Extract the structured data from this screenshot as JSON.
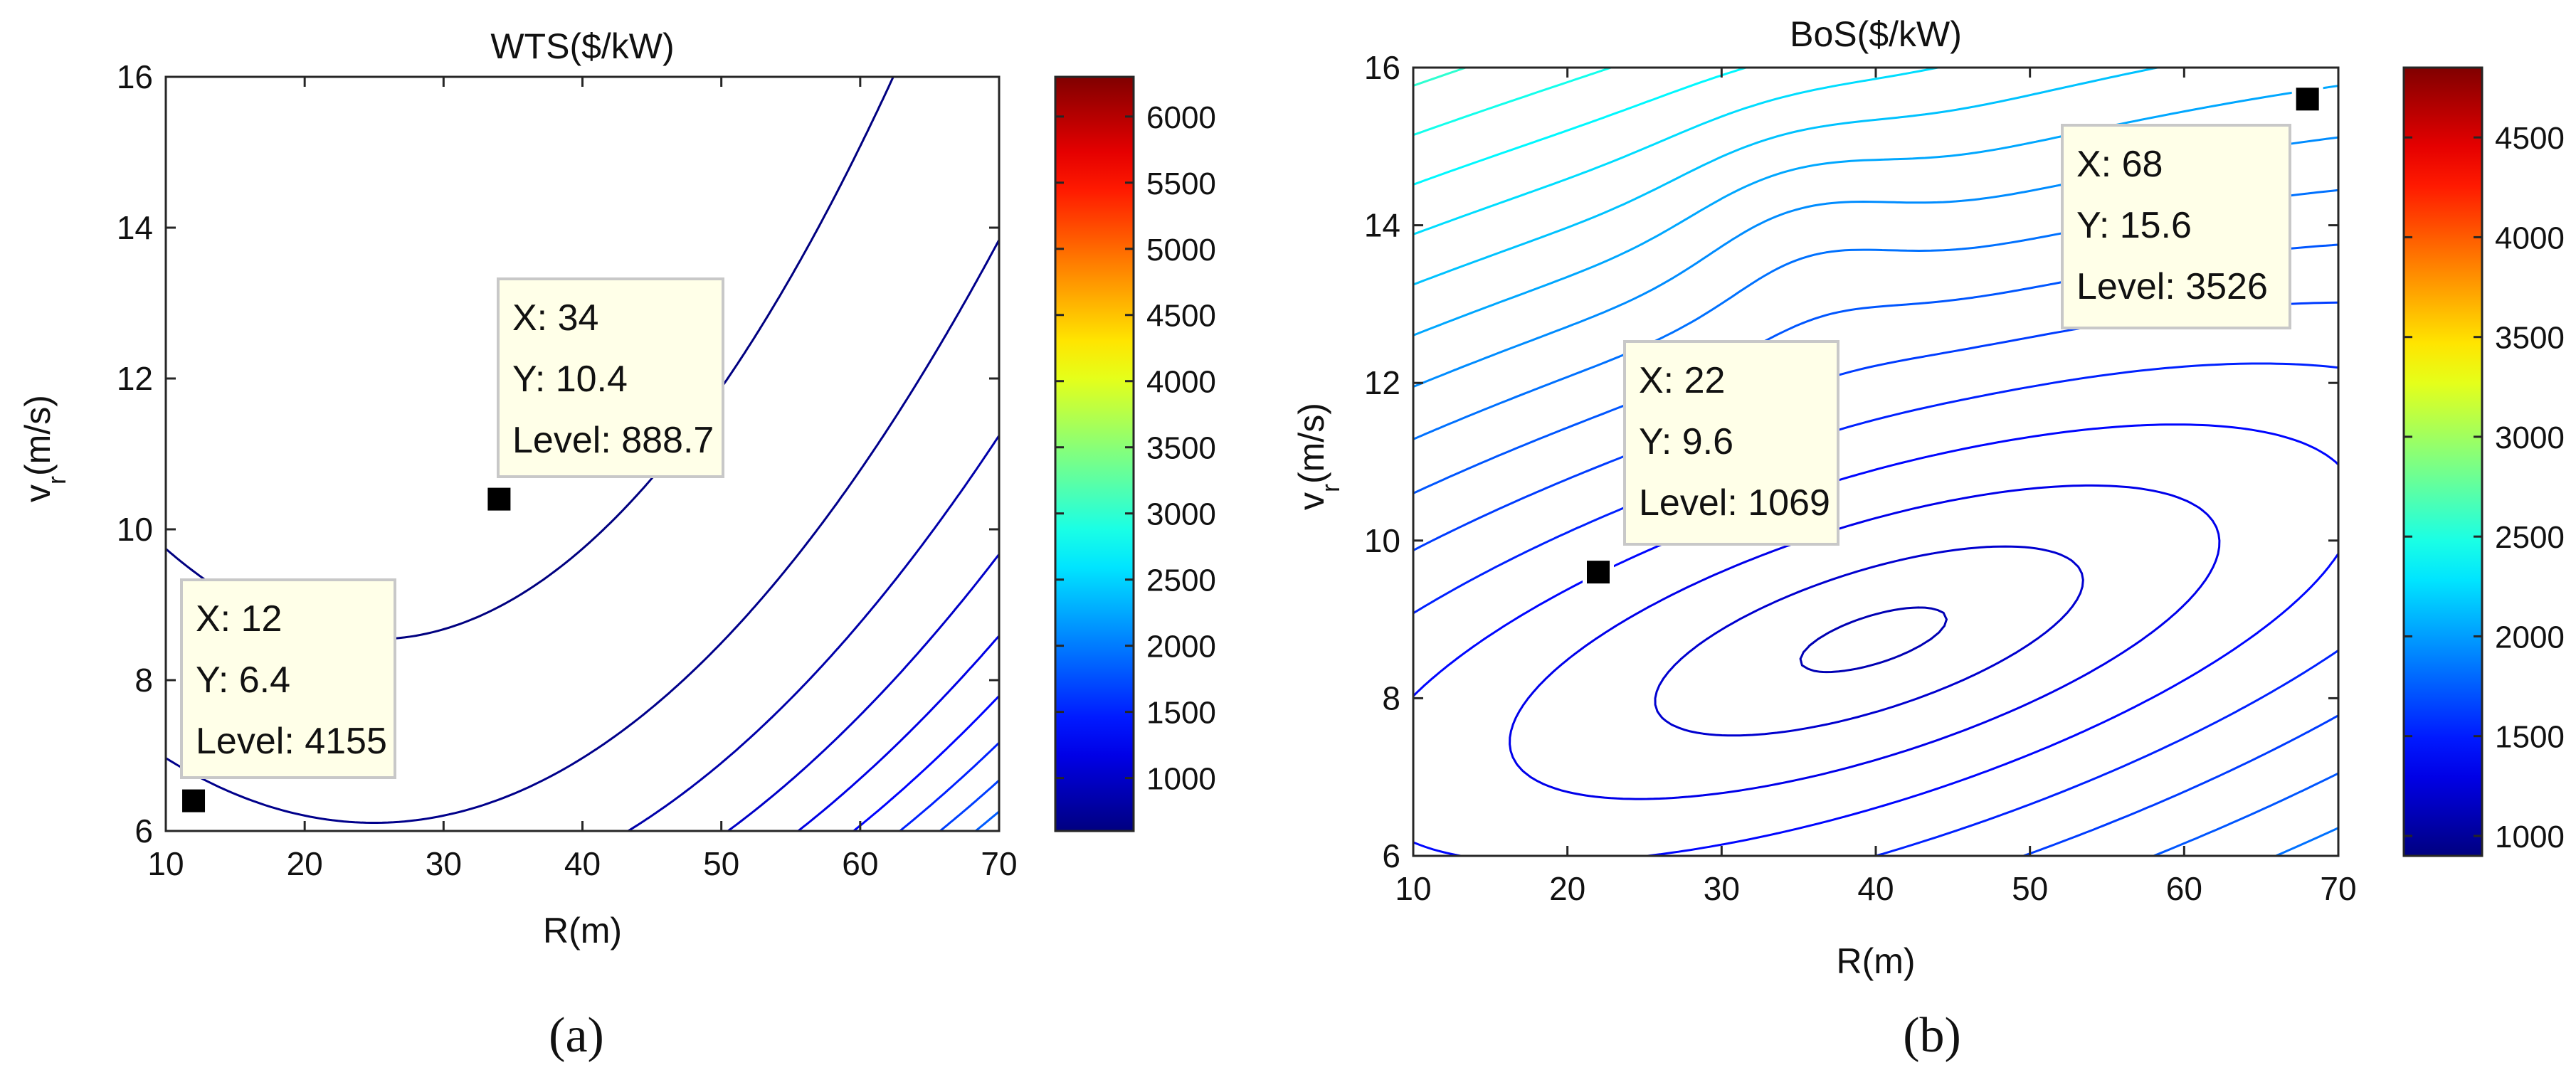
{
  "chart_data": [
    {
      "type": "contour",
      "panel_label": "(a)",
      "title": "WTS($/kW)",
      "xlabel": "R(m)",
      "ylabel_main": "v",
      "ylabel_sub": "r",
      "ylabel_unit": "(m/s)",
      "xlim": [
        10,
        70
      ],
      "ylim": [
        6,
        16
      ],
      "xticks": [
        "10",
        "20",
        "30",
        "40",
        "50",
        "60",
        "70"
      ],
      "yticks": [
        "6",
        "8",
        "10",
        "12",
        "14",
        "16"
      ],
      "colorbar": {
        "min": 600,
        "max": 6300,
        "ticks": [
          "1000",
          "1500",
          "2000",
          "2500",
          "3000",
          "3500",
          "4000",
          "4500",
          "5000",
          "5500",
          "6000"
        ]
      },
      "datatips": [
        {
          "x": 34,
          "y": 10.4,
          "level": 888.7,
          "x_text": "X: 34",
          "y_text": "Y: 10.4",
          "level_text": "Level: 888.7"
        },
        {
          "x": 12,
          "y": 6.4,
          "level": 4155,
          "x_text": "X: 12",
          "y_text": "Y: 6.4",
          "level_text": "Level: 4155"
        }
      ]
    },
    {
      "type": "contour",
      "panel_label": "(b)",
      "title": "BoS($/kW)",
      "xlabel": "R(m)",
      "ylabel_main": "v",
      "ylabel_sub": "r",
      "ylabel_unit": "(m/s)",
      "xlim": [
        10,
        70
      ],
      "ylim": [
        6,
        16
      ],
      "xticks": [
        "10",
        "20",
        "30",
        "40",
        "50",
        "60",
        "70"
      ],
      "yticks": [
        "6",
        "8",
        "10",
        "12",
        "14",
        "16"
      ],
      "colorbar": {
        "min": 900,
        "max": 4850,
        "ticks": [
          "1000",
          "1500",
          "2000",
          "2500",
          "3000",
          "3500",
          "4000",
          "4500"
        ]
      },
      "datatips": [
        {
          "x": 22,
          "y": 9.6,
          "level": 1069,
          "x_text": "X: 22",
          "y_text": "Y: 9.6",
          "level_text": "Level: 1069"
        },
        {
          "x": 68,
          "y": 15.6,
          "level": 3526,
          "x_text": "X: 68",
          "y_text": "Y: 15.6",
          "level_text": "Level: 3526"
        }
      ]
    }
  ],
  "colors": {
    "contour_line": "#1a1aa6",
    "axis": "#262626",
    "datatip_bg": "#ffffe8",
    "datatip_border": "#c8c8c8",
    "marker": "#000000"
  }
}
